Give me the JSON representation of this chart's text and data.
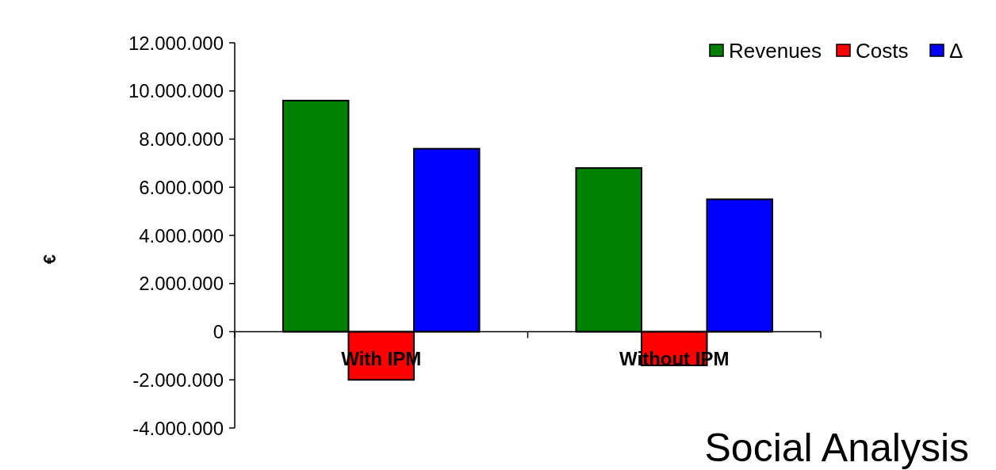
{
  "chart_data": {
    "type": "bar",
    "categories": [
      "With IPM",
      "Without IPM"
    ],
    "series": [
      {
        "name": "Revenues",
        "color": "#008000",
        "values": [
          9600000,
          6800000
        ]
      },
      {
        "name": "Costs",
        "color": "#ff0000",
        "values": [
          -2000000,
          -1400000
        ]
      },
      {
        "name": "Δ",
        "color": "#0000ff",
        "values": [
          7600000,
          5500000
        ]
      }
    ],
    "ylabel": "€",
    "ylim": [
      -4000000,
      12000000
    ],
    "yticks": [
      {
        "value": -4000000,
        "label": "-4.000.000"
      },
      {
        "value": -2000000,
        "label": "-2.000.000"
      },
      {
        "value": 0,
        "label": "0"
      },
      {
        "value": 2000000,
        "label": "2.000.000"
      },
      {
        "value": 4000000,
        "label": "4.000.000"
      },
      {
        "value": 6000000,
        "label": "6.000.000"
      },
      {
        "value": 8000000,
        "label": "8.000.000"
      },
      {
        "value": 10000000,
        "label": "10.000.000"
      },
      {
        "value": 12000000,
        "label": "12.000.000"
      }
    ],
    "legend": "top right",
    "grid": false,
    "annotations": [
      "Social Analysis"
    ]
  }
}
